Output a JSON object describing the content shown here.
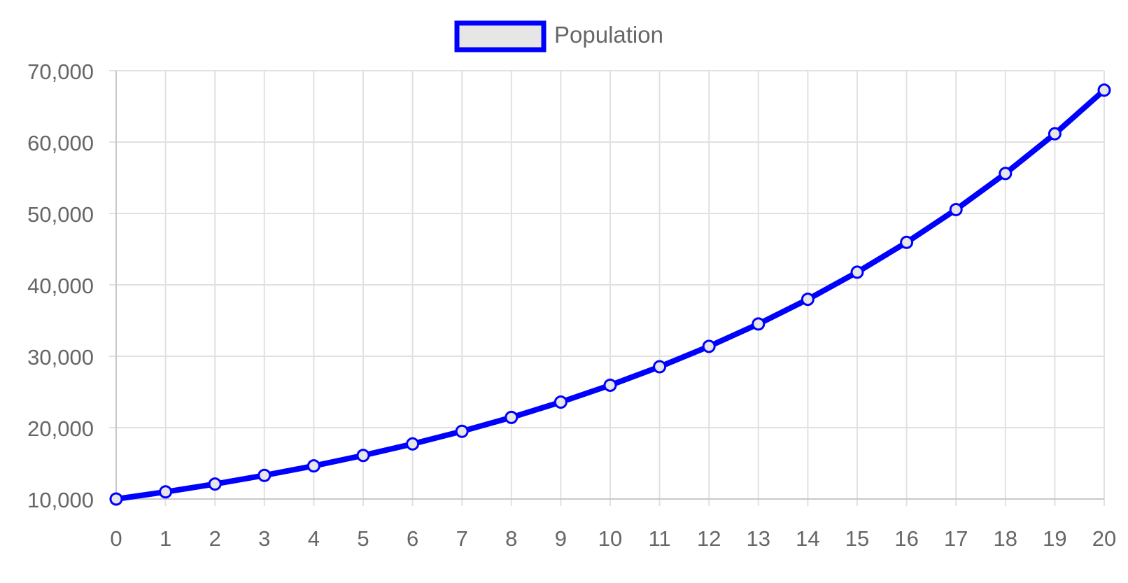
{
  "chart_data": {
    "type": "line",
    "title": "",
    "xlabel": "",
    "ylabel": "",
    "x": [
      0,
      1,
      2,
      3,
      4,
      5,
      6,
      7,
      8,
      9,
      10,
      11,
      12,
      13,
      14,
      15,
      16,
      17,
      18,
      19,
      20
    ],
    "series": [
      {
        "name": "Population",
        "color": "#0000ff",
        "values": [
          10000,
          11000,
          12100,
          13310,
          14641,
          16105,
          17716,
          19487,
          21436,
          23579,
          25937,
          28531,
          31384,
          34523,
          37975,
          41772,
          45950,
          50545,
          55599,
          61159,
          67275
        ]
      }
    ],
    "ylim": [
      10000,
      70000
    ],
    "yticks": [
      10000,
      20000,
      30000,
      40000,
      50000,
      60000,
      70000
    ],
    "ytick_labels": [
      "10,000",
      "20,000",
      "30,000",
      "40,000",
      "50,000",
      "60,000",
      "70,000"
    ],
    "xlim": [
      0,
      20
    ],
    "grid": true,
    "legend": {
      "position": "top-center",
      "entries": [
        "Population"
      ],
      "swatch_fill": "#e6e6e6",
      "swatch_border": "#0000ff"
    },
    "colors": {
      "grid": "#e1e1e1",
      "axis": "#c8c8c8",
      "text": "#666666",
      "point_fill": "#e6e6e6"
    }
  }
}
